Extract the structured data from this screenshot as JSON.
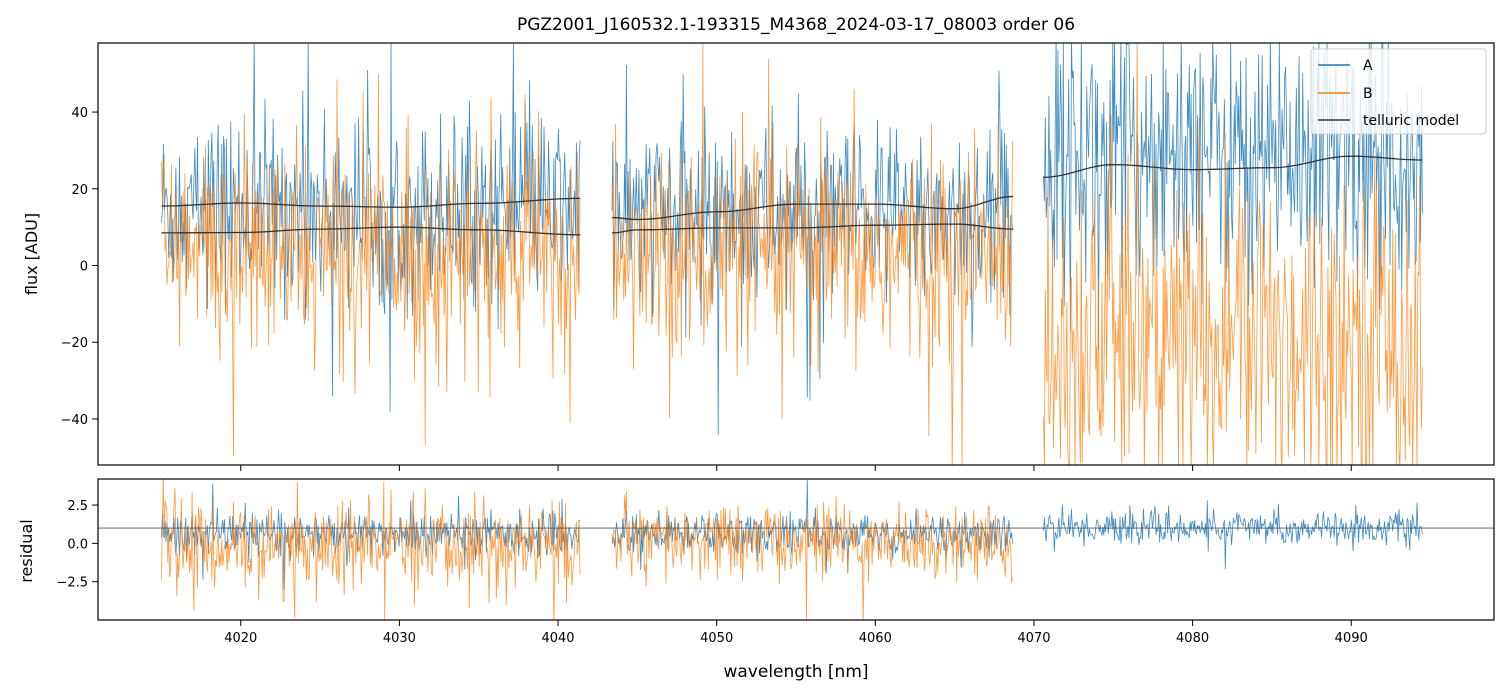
{
  "chart_data": [
    {
      "panel": "top",
      "type": "line",
      "title": "PGZ2001_J160532.1-193315_M4368_2024-03-17_08003  order 06",
      "xlabel": "",
      "ylabel": "flux [ADU]",
      "xlim": [
        4011,
        4099
      ],
      "ylim": [
        -52,
        58
      ],
      "yticks": [
        -40,
        -20,
        0,
        20,
        40
      ],
      "yticklabels": [
        "−40",
        "−20",
        "0",
        "20",
        "40"
      ],
      "legend": {
        "position": "top-right",
        "entries": [
          {
            "label": "A",
            "color": "#1f77b4"
          },
          {
            "label": "B",
            "color": "#ff7f0e"
          },
          {
            "label": "telluric model",
            "color": "#333333"
          }
        ]
      },
      "segments": [
        {
          "x_range": [
            4015,
            4041.4
          ],
          "A_model": {
            "x": [
              4015,
              4020,
              4025,
              4030,
              4035,
              4041.4
            ],
            "y": [
              15.5,
              16.3,
              15.5,
              15.2,
              16.2,
              17.5
            ]
          },
          "B_model": {
            "x": [
              4015,
              4020,
              4025,
              4030,
              4035,
              4041.4
            ],
            "y": [
              8.5,
              8.6,
              9.5,
              10.0,
              9.3,
              8.0
            ]
          },
          "A_level": 15,
          "A_noise": 12,
          "B_level": 3,
          "B_noise": 14
        },
        {
          "x_range": [
            4043.4,
            4068.7
          ],
          "A_model": {
            "x": [
              4043.4,
              4045,
              4050,
              4055,
              4060,
              4065,
              4068.7
            ],
            "y": [
              12.5,
              12.0,
              14.0,
              16.0,
              16.0,
              14.8,
              18.0
            ]
          },
          "B_model": {
            "x": [
              4043.4,
              4045,
              4050,
              4055,
              4060,
              4065,
              4068.7
            ],
            "y": [
              8.5,
              9.3,
              9.8,
              9.8,
              10.5,
              10.8,
              9.5
            ]
          },
          "A_level": 13,
          "A_noise": 12,
          "B_level": 2,
          "B_noise": 14
        },
        {
          "x_range": [
            4070.6,
            4094.5
          ],
          "A_model": {
            "x": [
              4070.6,
              4075,
              4080,
              4085,
              4090,
              4094.5
            ],
            "y": [
              23.0,
              26.3,
              25.0,
              25.5,
              28.5,
              27.5
            ]
          },
          "A_level": 30,
          "A_noise": 18,
          "B_level": -18,
          "B_noise": 22
        }
      ]
    },
    {
      "panel": "bottom",
      "type": "line",
      "xlabel": "wavelength [nm]",
      "ylabel": "residual",
      "xlim": [
        4011,
        4099
      ],
      "ylim": [
        -5,
        4.2
      ],
      "xticks": [
        4020,
        4030,
        4040,
        4050,
        4060,
        4070,
        4080,
        4090
      ],
      "xticklabels": [
        "4020",
        "4030",
        "4040",
        "4050",
        "4060",
        "4070",
        "4080",
        "4090"
      ],
      "yticks": [
        -2.5,
        0.0,
        2.5
      ],
      "yticklabels": [
        "−2.5",
        "0.0",
        "2.5"
      ],
      "reference_line": 1.0,
      "segments": [
        {
          "x_range": [
            4015,
            4041.4
          ],
          "A_level": 0.6,
          "A_noise": 0.7,
          "B_level": -0.2,
          "B_noise": 1.5
        },
        {
          "x_range": [
            4043.4,
            4068.7
          ],
          "A_level": 0.6,
          "A_noise": 0.7,
          "B_level": 0.1,
          "B_noise": 1.2
        },
        {
          "x_range": [
            4070.6,
            4094.5
          ],
          "A_level": 1.0,
          "A_noise": 0.55
        }
      ]
    }
  ]
}
